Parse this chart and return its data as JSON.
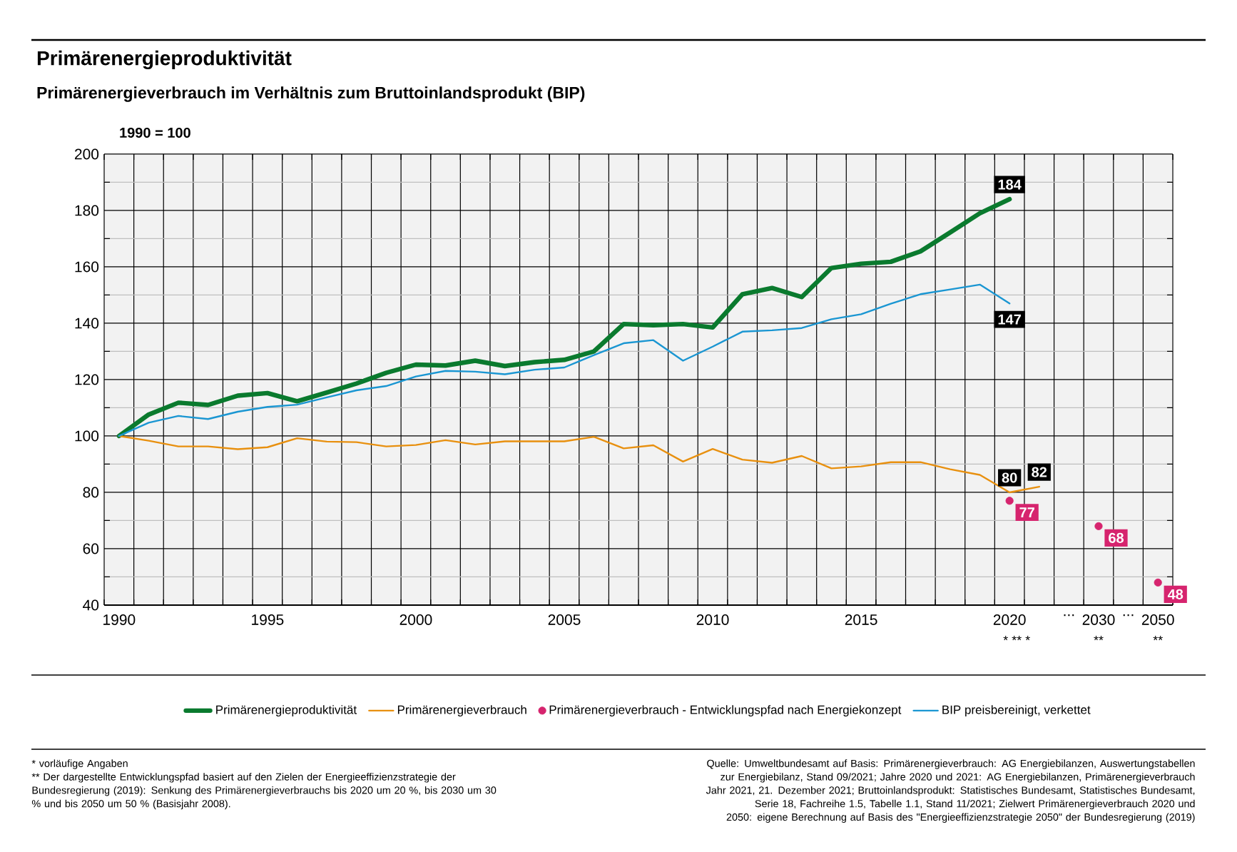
{
  "chart_data": {
    "type": "line",
    "title": "Primärenergieproduktivität",
    "subtitle": "Primärenergieverbrauch im Verhältnis zum Bruttoinlandsprodukt (BIP)",
    "ylabel": "1990 = 100",
    "categories": [
      "1990",
      null,
      null,
      null,
      null,
      "1995",
      null,
      null,
      null,
      null,
      "2000",
      null,
      null,
      null,
      null,
      "2005",
      null,
      null,
      null,
      null,
      "2010",
      null,
      null,
      null,
      null,
      "2015",
      null,
      null,
      null,
      null,
      "2020",
      null,
      "...",
      "2030",
      "...",
      "2050"
    ],
    "series": [
      {
        "name": "Primärenergieproduktivität",
        "color": "#0a7a2e",
        "values": [
          100,
          107.6,
          111.8,
          111,
          114.3,
          115.2,
          112.3,
          115.4,
          118.6,
          122.4,
          125.3,
          125,
          126.7,
          124.8,
          126.2,
          127,
          130,
          139.7,
          139.3,
          139.7,
          138.5,
          150.3,
          152.5,
          149.3,
          159.6,
          161.1,
          161.8,
          165.5,
          172.2,
          179,
          184,
          null,
          null,
          null,
          null,
          null
        ],
        "value_labels": [
          null,
          null,
          null,
          null,
          null,
          null,
          null,
          null,
          null,
          null,
          null,
          null,
          null,
          null,
          null,
          null,
          null,
          null,
          null,
          null,
          null,
          null,
          null,
          null,
          null,
          null,
          null,
          null,
          null,
          null,
          "184",
          null,
          null,
          null,
          null,
          null
        ]
      },
      {
        "name": "Primärenergieverbrauch",
        "color": "#e8900f",
        "values": [
          100,
          98.3,
          96.3,
          96.3,
          95.3,
          96,
          99.2,
          98,
          97.8,
          96.3,
          96.8,
          98.5,
          97,
          98.1,
          98.1,
          98.1,
          99.7,
          95.6,
          96.7,
          90.9,
          95.4,
          91.6,
          90.5,
          92.9,
          88.5,
          89.2,
          90.7,
          90.7,
          88.2,
          86.2,
          80,
          82,
          null,
          null,
          null,
          null
        ],
        "value_labels": [
          null,
          null,
          null,
          null,
          null,
          null,
          null,
          null,
          null,
          null,
          null,
          null,
          null,
          null,
          null,
          null,
          null,
          null,
          null,
          null,
          null,
          null,
          null,
          null,
          null,
          null,
          null,
          null,
          null,
          null,
          "80",
          "82",
          null,
          null,
          null,
          null
        ]
      },
      {
        "name": "Primärenergieverbrauch - Entwicklungspfad nach Energiekonzept",
        "type": "scatter",
        "marker": "circle",
        "color": "#d6246e",
        "values": [
          null,
          null,
          null,
          null,
          null,
          null,
          null,
          null,
          null,
          null,
          null,
          null,
          null,
          null,
          null,
          null,
          null,
          null,
          null,
          null,
          null,
          null,
          null,
          null,
          null,
          null,
          null,
          null,
          null,
          null,
          77,
          null,
          null,
          68,
          null,
          48
        ],
        "value_labels": [
          null,
          null,
          null,
          null,
          null,
          null,
          null,
          null,
          null,
          null,
          null,
          null,
          null,
          null,
          null,
          null,
          null,
          null,
          null,
          null,
          null,
          null,
          null,
          null,
          null,
          null,
          null,
          null,
          null,
          null,
          "77",
          null,
          null,
          "68",
          null,
          "48"
        ]
      },
      {
        "name": "BIP preisbereinigt, verkettet",
        "color": "#1a96d2",
        "values": [
          100,
          104.7,
          107.1,
          106,
          108.6,
          110.3,
          111.1,
          113.7,
          116.2,
          117.7,
          121.1,
          123.1,
          122.8,
          121.9,
          123.5,
          124.3,
          128.7,
          132.9,
          134,
          126.7,
          131.7,
          137,
          137.5,
          138.3,
          141.4,
          143.2,
          146.9,
          150.3,
          152,
          153.7,
          147,
          null,
          null,
          null,
          null,
          null
        ],
        "value_labels": [
          null,
          null,
          null,
          null,
          null,
          null,
          null,
          null,
          null,
          null,
          null,
          null,
          null,
          null,
          null,
          null,
          null,
          null,
          null,
          null,
          null,
          null,
          null,
          null,
          null,
          null,
          null,
          null,
          null,
          null,
          "147",
          null,
          null,
          null,
          null,
          null
        ]
      }
    ],
    "ylim": [
      40,
      200
    ],
    "yticks": [
      40,
      60,
      80,
      100,
      120,
      140,
      160,
      180,
      200
    ],
    "grid": true,
    "legend": "bottom",
    "annotations": [
      "* **  *",
      "**",
      "**",
      "* vorläufige Angaben",
      "** Der dargestellte Entwicklungspfad basiert auf den Zielen der Energieeffizienzstrategie der Bundesregierung (2019): Senkung des Primärenergieverbrauchs bis 2020 um 20 %, bis 2030 um 30 % und bis 2050 um 50 % (Basisjahr 2008).",
      "Quelle: Umweltbundesamt auf Basis: Primärenergieverbrauch: AG Energiebilanzen, Auswertungstabellen zur Energiebilanz, Stand 09/2021; Jahre 2020 und 2021: AG Energiebilanzen, Primärenergieverbrauch Jahr 2021, 21. Dezember 2021; Bruttoinlandsprodukt: Statistisches Bundesamt, Statistisches Bundesamt, Serie 18, Fachreihe 1.5, Tabelle 1.1, Stand 11/2021; Zielwert Primärenergieverbrauch 2020 und 2050: eigene Berechnung auf Basis des \"Energieeffizienzstrategie 2050\" der Bundesregierung (2019)"
    ]
  }
}
